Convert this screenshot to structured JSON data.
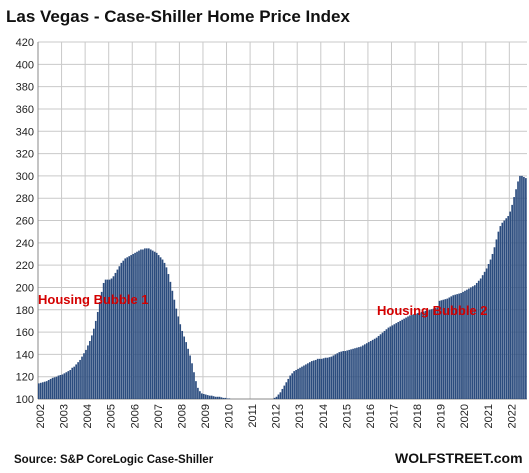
{
  "chart_data": {
    "type": "bar",
    "title": "Las Vegas - Case-Shiller Home Price Index",
    "ylim": [
      100,
      420
    ],
    "yticks": [
      100,
      120,
      140,
      160,
      180,
      200,
      220,
      240,
      260,
      280,
      300,
      320,
      340,
      360,
      380,
      400,
      420
    ],
    "xlim": [
      2002,
      2022.75
    ],
    "xticks": [
      2002,
      2003,
      2004,
      2005,
      2006,
      2007,
      2008,
      2009,
      2010,
      2011,
      2012,
      2013,
      2014,
      2015,
      2016,
      2017,
      2018,
      2019,
      2020,
      2021,
      2022
    ],
    "grid": true,
    "bar_color": "#2b4c7e",
    "start_year": 2002,
    "series": [
      {
        "frequency": "monthly",
        "values": [
          114,
          114.5,
          115,
          115.5,
          116,
          117,
          118,
          119,
          119.5,
          120,
          121,
          121.5,
          122,
          123,
          124,
          125,
          126,
          128,
          129,
          131,
          133,
          135,
          138,
          141,
          144,
          148,
          152,
          157,
          163,
          170,
          178,
          187,
          196,
          204,
          207,
          207,
          207,
          208,
          210,
          213,
          216,
          219,
          222,
          224,
          226,
          227,
          228,
          229,
          230,
          231,
          232,
          233,
          234,
          234,
          235,
          235,
          235,
          234,
          233,
          232,
          231,
          229,
          227,
          225,
          222,
          218,
          212,
          205,
          197,
          189,
          181,
          174,
          167,
          161,
          156,
          151,
          145,
          139,
          132,
          124,
          116,
          110,
          107,
          105,
          104.5,
          104,
          103.5,
          103,
          103,
          102.5,
          102,
          102,
          102,
          101.5,
          101,
          101,
          100.5,
          100.5,
          100,
          100,
          99.5,
          99.5,
          99,
          99,
          99,
          98.5,
          98.5,
          98.5,
          98,
          98,
          98,
          98,
          98,
          98,
          98.5,
          98.5,
          99,
          99,
          99.5,
          100,
          101,
          102,
          104,
          106,
          109,
          112,
          115,
          118,
          121,
          123,
          125,
          126,
          127,
          128,
          129,
          130,
          131,
          132,
          133,
          134,
          134.5,
          135,
          136,
          136,
          136,
          136.5,
          137,
          137,
          137.5,
          138,
          139,
          140,
          141,
          142,
          142.5,
          143,
          143,
          143.5,
          144,
          144.5,
          145,
          145.5,
          146,
          146.5,
          147,
          148,
          149,
          150,
          151,
          152,
          153,
          154,
          155,
          156.5,
          158,
          159.5,
          161,
          162.5,
          164,
          165,
          166,
          167,
          168,
          169,
          170,
          171,
          172,
          173,
          174,
          175,
          175.5,
          176,
          176.5,
          177,
          177.5,
          178,
          178.5,
          179,
          179.5,
          180,
          180.5,
          181,
          181.5,
          182,
          188,
          188.5,
          189,
          189.5,
          190,
          191,
          192,
          193,
          193.5,
          194,
          194.5,
          195,
          196,
          197,
          198,
          199,
          200,
          201,
          202,
          204,
          206,
          208,
          211,
          214,
          217,
          221,
          225,
          230,
          236,
          243,
          250,
          255,
          258,
          260,
          262,
          264,
          268,
          274,
          281,
          288,
          295,
          300,
          300,
          299,
          298
        ]
      }
    ],
    "annotations": [
      "Housing Bubble 1",
      "Housing Bubble 2"
    ]
  },
  "footer": {
    "source": "Source: S&P CoreLogic Case-Shiller",
    "brand": "WOLFSTREET.com"
  }
}
